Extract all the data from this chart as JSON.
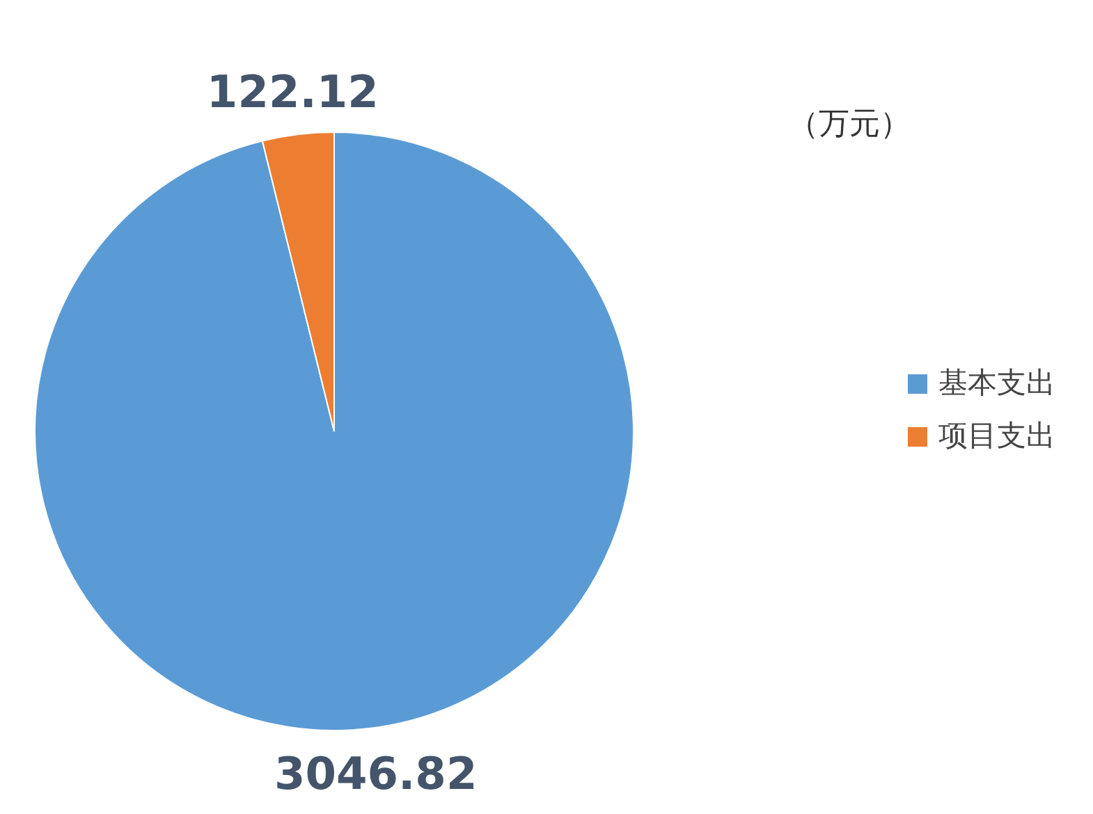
{
  "chart_data": {
    "type": "pie",
    "categories": [
      "基本支出",
      "项目支出"
    ],
    "values": [
      3046.82,
      122.12
    ],
    "colors": [
      "#5b9bd5",
      "#ed7d31"
    ],
    "data_labels": true,
    "legend": "right",
    "annotations": [
      "（万元）"
    ]
  }
}
